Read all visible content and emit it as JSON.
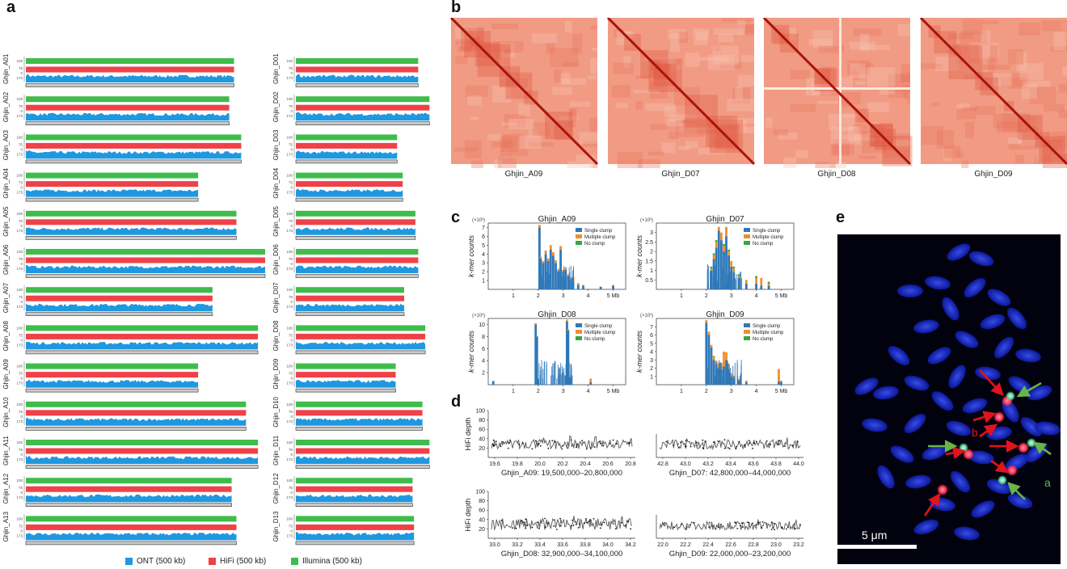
{
  "panels": {
    "a": "a",
    "b": "b",
    "c": "c",
    "d": "d",
    "e": "e"
  },
  "panel_a": {
    "colors": {
      "ont": "#1f98e0",
      "hifi": "#ef4148",
      "illumina": "#3fbc4b",
      "chrom": "#c9c9c9"
    },
    "track_ticks": {
      "illumina": "100",
      "hifi": "75",
      "ont": "173",
      "zero": "0"
    },
    "left_column": [
      {
        "name": "Ghjin_A01",
        "rel_length": 0.87
      },
      {
        "name": "Ghjin_A02",
        "rel_length": 0.85
      },
      {
        "name": "Ghjin_A03",
        "rel_length": 0.9
      },
      {
        "name": "Ghjin_A04",
        "rel_length": 0.72
      },
      {
        "name": "Ghjin_A05",
        "rel_length": 0.88
      },
      {
        "name": "Ghjin_A06",
        "rel_length": 1.0
      },
      {
        "name": "Ghjin_A07",
        "rel_length": 0.78
      },
      {
        "name": "Ghjin_A08",
        "rel_length": 0.97
      },
      {
        "name": "Ghjin_A09",
        "rel_length": 0.72
      },
      {
        "name": "Ghjin_A10",
        "rel_length": 0.92
      },
      {
        "name": "Ghjin_A11",
        "rel_length": 0.97
      },
      {
        "name": "Ghjin_A12",
        "rel_length": 0.86
      },
      {
        "name": "Ghjin_A13",
        "rel_length": 0.88
      }
    ],
    "right_column": [
      {
        "name": "Ghjin_D01",
        "rel_length": 0.87
      },
      {
        "name": "Ghjin_D02",
        "rel_length": 0.95
      },
      {
        "name": "Ghjin_D03",
        "rel_length": 0.72
      },
      {
        "name": "Ghjin_D04",
        "rel_length": 0.76
      },
      {
        "name": "Ghjin_D05",
        "rel_length": 0.85
      },
      {
        "name": "Ghjin_D06",
        "rel_length": 0.87
      },
      {
        "name": "Ghjin_D07",
        "rel_length": 0.77
      },
      {
        "name": "Ghjin_D08",
        "rel_length": 0.92
      },
      {
        "name": "Ghjin_D09",
        "rel_length": 0.71
      },
      {
        "name": "Ghjin_D10",
        "rel_length": 0.9
      },
      {
        "name": "Ghjin_D11",
        "rel_length": 0.95
      },
      {
        "name": "Ghjin_D12",
        "rel_length": 0.83
      },
      {
        "name": "Ghjin_D13",
        "rel_length": 0.84
      }
    ],
    "legend": [
      {
        "label": "ONT (500 kb)",
        "color": "#1f98e0"
      },
      {
        "label": "HiFi (500 kb)",
        "color": "#ef4148"
      },
      {
        "label": "Illumina (500 kb)",
        "color": "#3fbc4b"
      }
    ]
  },
  "panel_b": {
    "maps": [
      {
        "label": "Ghjin_A09"
      },
      {
        "label": "Ghjin_D07"
      },
      {
        "label": "Ghjin_D08"
      },
      {
        "label": "Ghjin_D09"
      }
    ]
  },
  "chart_data": [
    {
      "type": "bar",
      "title": "Ghjin_A09",
      "ylabel": "k-mer counts",
      "yscale_note": "(×10³)",
      "xlim": [
        0,
        5.5
      ],
      "ylim": [
        0,
        7.5
      ],
      "xticks": [
        "1",
        "2",
        "3",
        "4",
        "5 Mb"
      ],
      "yticks": [
        "1",
        "2",
        "3",
        "4",
        "5",
        "6",
        "7"
      ],
      "legend": [
        "Single clump",
        "Multiple clump",
        "No clump"
      ],
      "legend_position": "top-right",
      "x": [
        2.05,
        2.1,
        2.2,
        2.3,
        2.4,
        2.5,
        2.6,
        2.7,
        2.8,
        2.9,
        3.0,
        3.1,
        3.2,
        3.4,
        3.6,
        3.8,
        4.5,
        5.0
      ],
      "series": [
        {
          "name": "Single clump",
          "values": [
            7.0,
            3.5,
            3.0,
            4.0,
            3.2,
            4.5,
            3.8,
            3.0,
            2.0,
            4.5,
            2.0,
            2.2,
            1.5,
            0.8,
            0.5,
            0.4,
            0.3,
            0.4
          ]
        },
        {
          "name": "Multiple clump",
          "values": [
            0.3,
            0.2,
            0.2,
            0.4,
            0.3,
            0.5,
            0.4,
            0.3,
            0.2,
            0.4,
            0.2,
            0.3,
            0.2,
            0.6,
            0.2,
            0.1,
            0.0,
            0.1
          ]
        },
        {
          "name": "No clump",
          "values": [
            0,
            0,
            0,
            0,
            0,
            0,
            0,
            0,
            0,
            0,
            0,
            0,
            0,
            0,
            0,
            0,
            0,
            0
          ]
        }
      ]
    },
    {
      "type": "bar",
      "title": "Ghjin_D07",
      "ylabel": "k-mer counts",
      "yscale_note": "(×10³)",
      "xlim": [
        0,
        5.5
      ],
      "ylim": [
        0,
        3.5
      ],
      "xticks": [
        "1",
        "2",
        "3",
        "4",
        "5 Mb"
      ],
      "yticks": [
        "0.5",
        "1",
        "1.5",
        "2",
        "2.5",
        "3"
      ],
      "legend": [
        "Single clump",
        "Multiple clump",
        "No clump"
      ],
      "legend_position": "top-right",
      "x": [
        2.2,
        2.3,
        2.4,
        2.5,
        2.6,
        2.7,
        2.8,
        2.9,
        3.0,
        3.1,
        3.3,
        3.6,
        4.0,
        4.2,
        4.5
      ],
      "series": [
        {
          "name": "Single clump",
          "values": [
            1.0,
            1.6,
            2.2,
            3.1,
            2.6,
            2.0,
            2.8,
            1.8,
            1.2,
            0.9,
            0.6,
            0.3,
            0.3,
            0.2,
            0.2
          ]
        },
        {
          "name": "Multiple clump",
          "values": [
            0.1,
            0.2,
            0.3,
            0.2,
            0.4,
            0.3,
            0.5,
            0.2,
            0.3,
            0.2,
            0.1,
            0.2,
            0.3,
            0.4,
            0.1
          ]
        },
        {
          "name": "No clump",
          "values": [
            0.1,
            0.1,
            0.1,
            0.0,
            0.0,
            0.1,
            0.0,
            0.1,
            0.0,
            0.1,
            0.1,
            0.0,
            0.1,
            0.0,
            0.1
          ]
        }
      ]
    },
    {
      "type": "bar",
      "title": "Ghjin_D08",
      "ylabel": "k-mer counts",
      "yscale_note": "(×10³)",
      "xlim": [
        0,
        5.5
      ],
      "ylim": [
        0,
        11
      ],
      "xticks": [
        "1",
        "2",
        "3",
        "4",
        "5 Mb"
      ],
      "yticks": [
        "2",
        "4",
        "6",
        "8",
        "10"
      ],
      "legend": [
        "Single clump",
        "Multiple clump",
        "No clump"
      ],
      "legend_position": "top-right",
      "x": [
        0.2,
        1.9,
        1.95,
        2.0,
        3.1,
        3.15,
        3.2,
        3.25,
        4.1
      ],
      "series": [
        {
          "name": "Single clump",
          "values": [
            0.6,
            10.0,
            8.0,
            1.0,
            1.5,
            10.5,
            9.0,
            1.2,
            0.4
          ]
        },
        {
          "name": "Multiple clump",
          "values": [
            0.0,
            0.2,
            0.1,
            0.0,
            0.1,
            0.3,
            0.2,
            0.1,
            0.6
          ]
        },
        {
          "name": "No clump",
          "values": [
            0,
            0,
            0,
            0,
            0,
            0,
            0,
            0,
            0
          ]
        }
      ]
    },
    {
      "type": "bar",
      "title": "Ghjin_D09",
      "ylabel": "k-mer counts",
      "yscale_note": "(×10³)",
      "xlim": [
        0,
        5.5
      ],
      "ylim": [
        0,
        8
      ],
      "xticks": [
        "1",
        "2",
        "3",
        "4",
        "5 Mb"
      ],
      "yticks": [
        "1",
        "2",
        "3",
        "4",
        "5",
        "6",
        "7"
      ],
      "legend": [
        "Single clump",
        "Multiple clump",
        "No clump"
      ],
      "legend_position": "top-right",
      "x": [
        2.0,
        2.1,
        2.2,
        2.3,
        2.4,
        2.5,
        2.6,
        2.7,
        2.8,
        2.9,
        3.0,
        3.1,
        3.3,
        3.6,
        4.9,
        5.0
      ],
      "series": [
        {
          "name": "Single clump",
          "values": [
            7.5,
            6.0,
            4.5,
            3.0,
            2.5,
            2.0,
            1.8,
            2.2,
            3.0,
            1.5,
            1.0,
            0.8,
            0.5,
            0.3,
            0.4,
            0.3
          ]
        },
        {
          "name": "Multiple clump",
          "values": [
            0.3,
            0.4,
            0.3,
            0.5,
            0.4,
            0.6,
            0.8,
            1.8,
            0.9,
            1.0,
            0.4,
            0.3,
            0.2,
            0.2,
            1.5,
            0.2
          ]
        },
        {
          "name": "No clump",
          "values": [
            0,
            0,
            0,
            0,
            0,
            0,
            0,
            0,
            0,
            0,
            0,
            0,
            0,
            0,
            0,
            0
          ]
        }
      ]
    },
    {
      "type": "line",
      "ylabel": "HiFi depth",
      "caption": "Ghjin_A09: 19,500,000–20,800,000",
      "xlim": [
        19.5,
        20.8
      ],
      "ylim": [
        0,
        100
      ],
      "xticks": [
        "19.6",
        "19.8",
        "20.0",
        "20.2",
        "20.4",
        "20.6",
        "20.8"
      ],
      "yticks": [
        "20",
        "40",
        "60",
        "80",
        "100"
      ],
      "mean": 28,
      "range": [
        20,
        40
      ]
    },
    {
      "type": "line",
      "caption": "Ghjin_D07: 42,800,000–44,000,000",
      "xlim": [
        42.8,
        44.0
      ],
      "ylim": [
        0,
        100
      ],
      "xticks": [
        "42.8",
        "43.0",
        "43.2",
        "43.4",
        "43.6",
        "43.8",
        "44.0"
      ],
      "mean": 28,
      "range": [
        20,
        40
      ]
    },
    {
      "type": "line",
      "ylabel": "HiFi depth",
      "caption": "Ghjin_D08: 32,900,000–34,100,000",
      "xlim": [
        32.9,
        34.2
      ],
      "ylim": [
        0,
        100
      ],
      "xticks": [
        "33.0",
        "33.2",
        "33.4",
        "33.6",
        "33.8",
        "34.0",
        "34.2"
      ],
      "yticks": [
        "20",
        "40",
        "60",
        "80",
        "100"
      ],
      "mean": 30,
      "range": [
        20,
        45
      ]
    },
    {
      "type": "line",
      "caption": "Ghjin_D09: 22,000,000–23,200,000",
      "xlim": [
        22.0,
        23.2
      ],
      "ylim": [
        0,
        100
      ],
      "xticks": [
        "22.0",
        "22.2",
        "22.4",
        "22.6",
        "22.8",
        "23.0",
        "23.2"
      ],
      "mean": 27,
      "range": [
        20,
        38
      ]
    }
  ],
  "panel_e": {
    "label_b": "b",
    "label_a": "a",
    "scale_bar": "5 μm",
    "colors": {
      "background": "#02020e",
      "chromosome": "#1a2fd8",
      "red_signal": "#ff3050",
      "green_signal": "#5ad09a",
      "red_arrow": "#e0141c",
      "green_arrow": "#69b548"
    }
  }
}
